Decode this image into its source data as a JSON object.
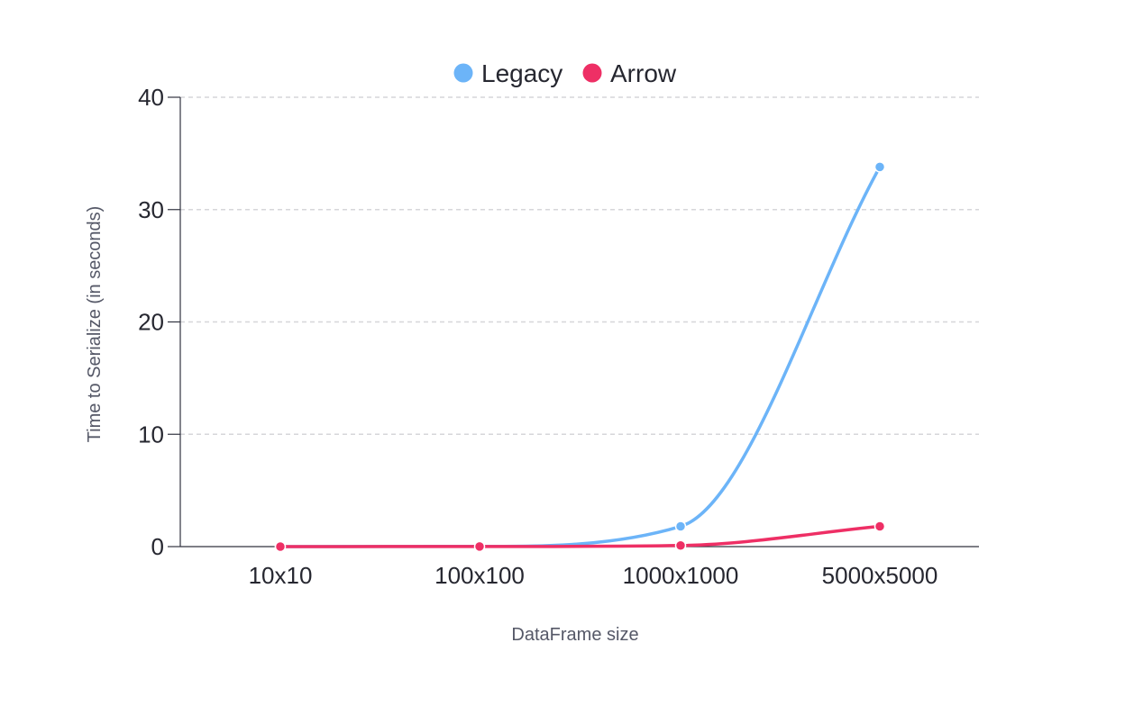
{
  "chart_data": {
    "type": "line",
    "xlabel": "DataFrame size",
    "ylabel": "Time to Serialize (in seconds)",
    "categories": [
      "10x10",
      "100x100",
      "1000x1000",
      "5000x5000"
    ],
    "ylim": [
      0,
      40
    ],
    "yticks": [
      0,
      10,
      20,
      30,
      40
    ],
    "grid": true,
    "legend_position": "top-center",
    "series": [
      {
        "name": "Legacy",
        "color": "#6CB4F8",
        "values": [
          0.0,
          0.02,
          1.8,
          33.8
        ]
      },
      {
        "name": "Arrow",
        "color": "#EE2F65",
        "values": [
          0.0,
          0.01,
          0.1,
          1.8
        ]
      }
    ]
  }
}
